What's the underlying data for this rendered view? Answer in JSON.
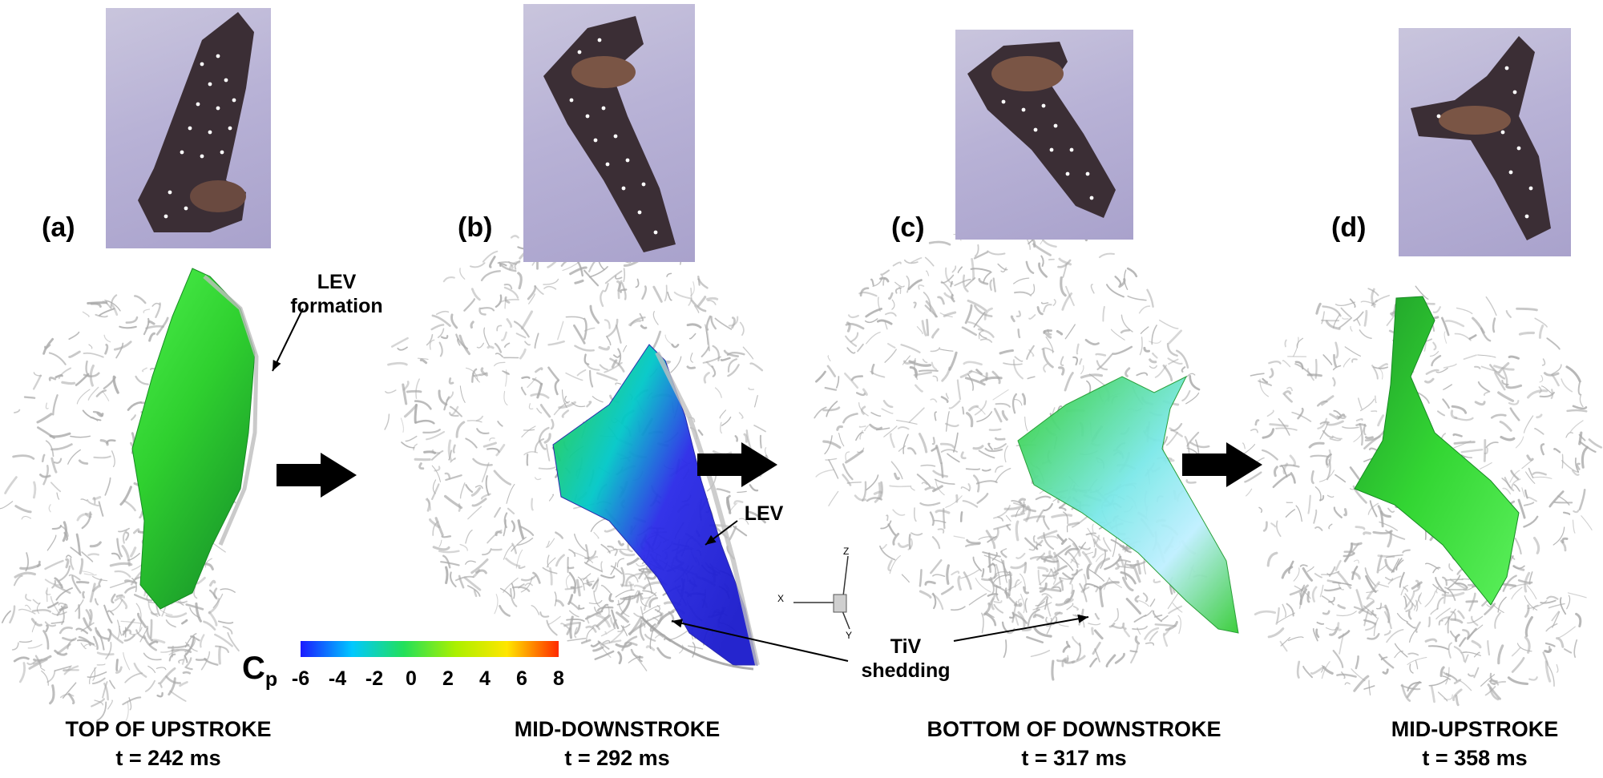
{
  "panels": [
    {
      "label": "(a)",
      "caption_line1": "TOP OF UPSTROKE",
      "caption_line2": "t = 242 ms"
    },
    {
      "label": "(b)",
      "caption_line1": "MID-DOWNSTROKE",
      "caption_line2": "t = 292 ms"
    },
    {
      "label": "(c)",
      "caption_line1": "BOTTOM OF DOWNSTROKE",
      "caption_line2": "t = 317 ms"
    },
    {
      "label": "(d)",
      "caption_line1": "MID-UPSTROKE",
      "caption_line2": "t = 358 ms"
    }
  ],
  "annotations": {
    "lev_formation_line1": "LEV",
    "lev_formation_line2": "formation",
    "lev": "LEV",
    "tiv_line1": "TiV",
    "tiv_line2": "shedding"
  },
  "colorbar": {
    "symbol": "C",
    "subscript": "p",
    "ticks": [
      "-6",
      "-4",
      "-2",
      "0",
      "2",
      "4",
      "6",
      "8"
    ],
    "colors": [
      "#1a1aff",
      "#00c8ff",
      "#22e05a",
      "#aaf000",
      "#ffe600",
      "#ff2a00"
    ]
  },
  "axes": {
    "x": "X",
    "y": "Y",
    "z": "Z"
  },
  "colors": {
    "wing_green": "#33d633",
    "lev_blue": "#2a2ae8",
    "vortex_gray": "#a9a9a9"
  }
}
